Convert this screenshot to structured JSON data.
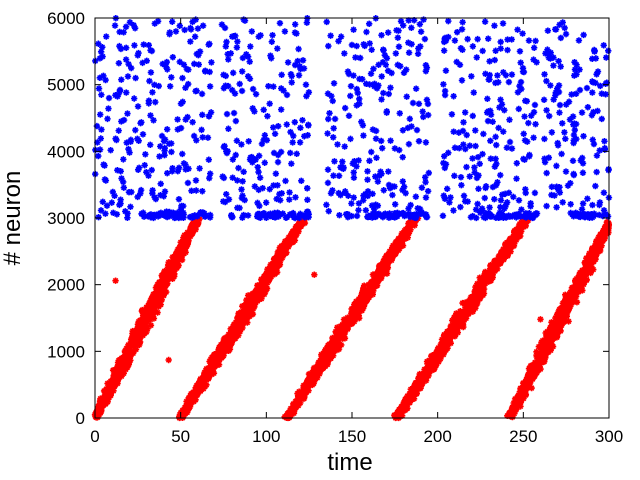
{
  "chart_data": {
    "type": "scatter",
    "xlabel": "time",
    "ylabel": "# neuron",
    "xlim": [
      0,
      300
    ],
    "ylim": [
      0,
      6000
    ],
    "x_ticks": [
      0,
      50,
      100,
      150,
      200,
      250,
      300
    ],
    "y_ticks": [
      0,
      1000,
      2000,
      3000,
      4000,
      5000,
      6000
    ],
    "x_tick_labels": [
      "0",
      "50",
      "100",
      "150",
      "200",
      "250",
      "300"
    ],
    "y_tick_labels": [
      "0",
      "1000",
      "2000",
      "3000",
      "4000",
      "5000",
      "6000"
    ],
    "grid": false,
    "legend": false,
    "marker": "asterisk",
    "series": [
      {
        "color": "#ff0000",
        "neuron_range": [
          0,
          3000
        ],
        "waves": [
          {
            "t_start": 0,
            "t_end": 60
          },
          {
            "t_start": 50,
            "t_end": 122
          },
          {
            "t_start": 112,
            "t_end": 187
          },
          {
            "t_start": 176,
            "t_end": 252
          },
          {
            "t_start": 242,
            "t_end": 302
          }
        ],
        "outliers": [
          [
            43,
            870
          ],
          [
            12,
            2060
          ],
          [
            30,
            1290
          ],
          [
            128,
            2150
          ],
          [
            260,
            1480
          ]
        ]
      },
      {
        "color": "#0000ff",
        "neuron_range": [
          3000,
          6000
        ],
        "activity_windows": [
          [
            0,
            68
          ],
          [
            74,
            125
          ],
          [
            135,
            195
          ],
          [
            203,
            258
          ],
          [
            262,
            300
          ]
        ]
      }
    ]
  }
}
